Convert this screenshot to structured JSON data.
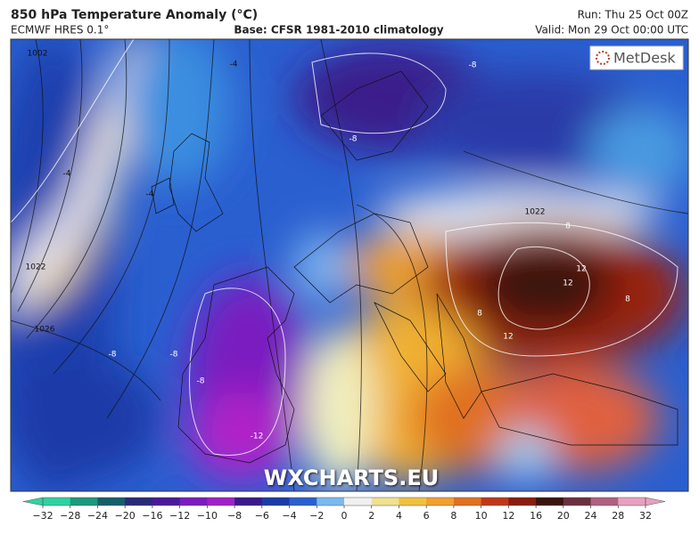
{
  "header": {
    "title": "850 hPa Temperature Anomaly (°C)",
    "model": "ECMWF HRES 0.1°",
    "base": "Base: CFSR 1981-2010 climatology",
    "run": "Run: Thu 25 Oct 00Z",
    "valid": "Valid: Mon 29 Oct 00:00 UTC"
  },
  "logo": "MetDesk",
  "watermark": "WXCHARTS.EU",
  "contour_labels": [
    "1002",
    "-4",
    "-4",
    "-4",
    "1022",
    "1026",
    "-8",
    "-8",
    "-8",
    "-8",
    "-8",
    "-12",
    "1022",
    "8",
    "12",
    "12",
    "12",
    "8",
    "8"
  ],
  "colorbar": {
    "ticks": [
      {
        "value": -32,
        "label": "−32"
      },
      {
        "value": -28,
        "label": "−28"
      },
      {
        "value": -24,
        "label": "−24"
      },
      {
        "value": -20,
        "label": "−20"
      },
      {
        "value": -16,
        "label": "−16"
      },
      {
        "value": -12,
        "label": "−12"
      },
      {
        "value": -10,
        "label": "−10"
      },
      {
        "value": -8,
        "label": "−8"
      },
      {
        "value": -6,
        "label": "−6"
      },
      {
        "value": -4,
        "label": "−4"
      },
      {
        "value": -2,
        "label": "−2"
      },
      0,
      2,
      4,
      6,
      8,
      10,
      12,
      16,
      20,
      24,
      28,
      32
    ],
    "colors": [
      "#2fd2a0",
      "#1a9a7a",
      "#155e6a",
      "#2a2a7a",
      "#4a1a9a",
      "#7a1cc0",
      "#a020c8",
      "#3a1a8a",
      "#1c3aa8",
      "#2a5fd0",
      "#7ab8f0",
      "#f0f0f0",
      "#f0e090",
      "#f0c040",
      "#f0a030",
      "#e07020",
      "#c03818",
      "#8a1c10",
      "#3a1410",
      "#6a3040",
      "#b06080",
      "#e8a0c0"
    ]
  }
}
